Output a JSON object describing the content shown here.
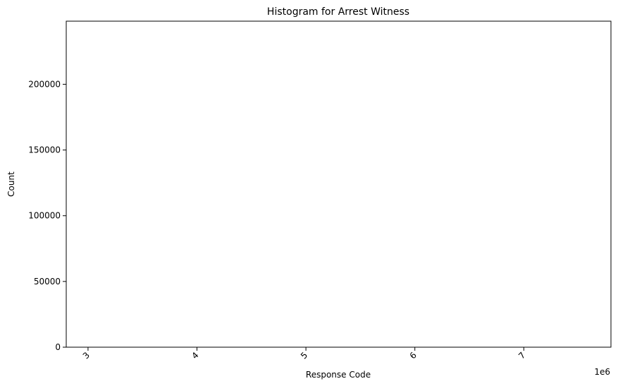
{
  "chart_data": {
    "type": "bar",
    "title": "Histogram for Arrest Witness",
    "xlabel": "Response Code",
    "ylabel": "Count",
    "x_ticks": [
      3,
      4,
      5,
      6,
      7
    ],
    "x_tick_labels": [
      "3",
      "4",
      "5",
      "6",
      "7"
    ],
    "x_offset_text": "1e6",
    "xlim": [
      2.8,
      7.8
    ],
    "y_ticks": [
      0,
      50000,
      100000,
      150000,
      200000
    ],
    "y_tick_labels": [
      "0",
      "50000",
      "100000",
      "150000",
      "200000"
    ],
    "ylim": [
      0,
      248000
    ],
    "x_tick_rotation": 45,
    "grid": false,
    "legend": "none",
    "series": []
  },
  "colors": {
    "axes": "#000000",
    "background": "#ffffff",
    "bar": "#1f77b4"
  }
}
